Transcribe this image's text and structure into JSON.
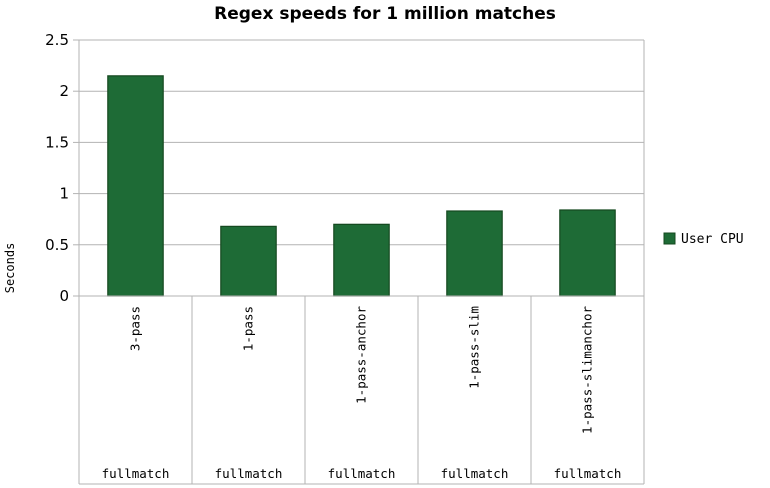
{
  "chart_data": {
    "type": "bar",
    "title": "Regex speeds for 1 million matches",
    "xlabel": "",
    "ylabel": "Seconds",
    "ylim": [
      0,
      2.5
    ],
    "yticks": [
      "0",
      "0.5",
      "1",
      "1.5",
      "2",
      "2.5"
    ],
    "grid": true,
    "legend_position": "right",
    "categories": [
      "3-pass",
      "1-pass",
      "1-pass-anchor",
      "1-pass-slim",
      "1-pass-slimanchor"
    ],
    "group_label": "fullmatch",
    "series": [
      {
        "name": "User CPU",
        "values": [
          2.15,
          0.68,
          0.7,
          0.83,
          0.84
        ],
        "color": "#1e6b36"
      }
    ]
  }
}
